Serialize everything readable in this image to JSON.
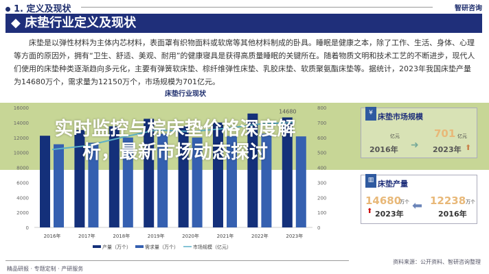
{
  "header": {
    "section": "1. 定义及现状",
    "logo": "智研咨询",
    "banner": "◆ 床垫行业定义及现状"
  },
  "paragraph": "床垫是以弹性材料为主体内芯材料，表面罩有织物面料或软席等其他材料制成的卧具。睡眠是健康之本，除了工作、生活、身体、心理等方面的原因外，拥有“卫生、舒适、美观、耐用”的健康寝具是获得高质量睡眠的关键所在。随着物质文明和技术工艺的不断进步，现代人们使用的床垫种类逐渐趋向多元化，主要有弹簧软床垫、棕纤维弹性床垫、乳胶床垫、软质聚氨酯床垫等。据统计，2023年我国床垫产量为14680万个，需求量为12150万个，市场规模为701亿元。",
  "chart_data": {
    "type": "bar",
    "title": "床垫行业现状",
    "categories": [
      "2016年",
      "2017年",
      "2018年",
      "2019年",
      "2020年",
      "2021年",
      "2022年",
      "2023年"
    ],
    "series": [
      {
        "name": "产量（万个）",
        "type": "bar",
        "axis": "left",
        "color": "#14307a",
        "values": [
          12238,
          13000,
          13500,
          14500,
          13500,
          14000,
          15200,
          14680
        ]
      },
      {
        "name": "需求量（万个）",
        "type": "bar",
        "axis": "left",
        "color": "#3560b0",
        "values": [
          11100,
          11300,
          12000,
          12500,
          12000,
          12200,
          12500,
          12150
        ]
      },
      {
        "name": "市场规模（亿元）",
        "type": "line",
        "axis": "right",
        "color": "#5bb0c8",
        "values": [
          520,
          545,
          600,
          650,
          640,
          660,
          690,
          701
        ]
      }
    ],
    "ylim_left": [
      0,
      16000
    ],
    "yticks_left": [
      0,
      2000,
      4000,
      6000,
      8000,
      10000,
      12000,
      14000,
      16000
    ],
    "ylim_right": [
      0,
      800
    ],
    "yticks_right": [
      0,
      100,
      200,
      300,
      400,
      500,
      600,
      700,
      800
    ],
    "data_labels": [
      "14680"
    ],
    "legend": "bottom",
    "grid": false
  },
  "market_box": {
    "title": "床垫市场规模",
    "unit": "亿元",
    "from_year": "2016年",
    "to_year": "2023年",
    "to_value": "701"
  },
  "production_box": {
    "icon": "chart-icon",
    "title": "床垫产量",
    "to_value": "14680",
    "to_unit": "万个",
    "to_year": "2023年",
    "from_value": "12238",
    "from_unit": "万个",
    "from_year": "2016年"
  },
  "overlay": {
    "title": "实时监控与棕床垫价格深度解析，最新市场动态探讨"
  },
  "source": "资料来源：公开资料、智研咨询整理",
  "footer": "精品研报 · 专题定制 · 产研服务"
}
